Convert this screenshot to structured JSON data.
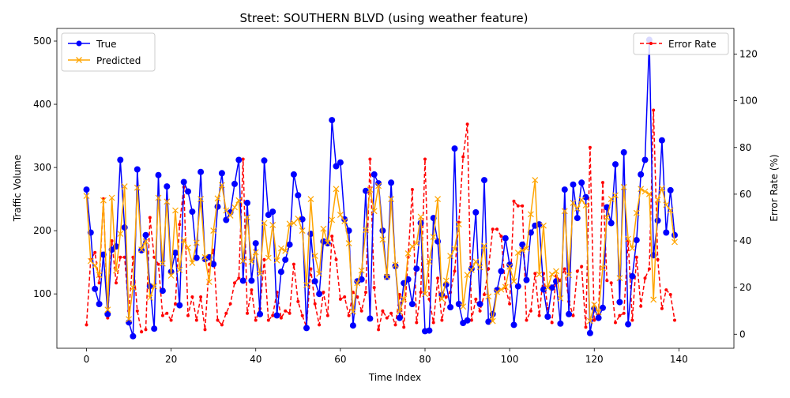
{
  "chart_data": {
    "type": "line",
    "title": "Street: SOUTHERN BLVD (using weather feature)",
    "xlabel": "Time Index",
    "ylabel": "Traffic Volume",
    "ylabel_right": "Error Rate (%)",
    "xlim": [
      -7,
      153
    ],
    "ylim": [
      14,
      520
    ],
    "ylim_right": [
      -6,
      131
    ],
    "x_ticks": [
      0,
      20,
      40,
      60,
      80,
      100,
      120,
      140
    ],
    "y_ticks": [
      100,
      200,
      300,
      400,
      500
    ],
    "y_right_ticks": [
      0,
      20,
      40,
      60,
      80,
      100,
      120
    ],
    "grid": false,
    "legend_left": [
      "True",
      "Predicted"
    ],
    "legend_right": [
      "Error Rate"
    ],
    "series": [
      {
        "name": "True",
        "axis": "left",
        "color": "#0000ff",
        "marker": "circle",
        "values": [
          265,
          197,
          108,
          84,
          162,
          68,
          170,
          175,
          312,
          205,
          55,
          33,
          297,
          169,
          193,
          112,
          45,
          288,
          105,
          270,
          135,
          165,
          82,
          277,
          262,
          230,
          157,
          293,
          155,
          158,
          147,
          238,
          291,
          217,
          229,
          274,
          312,
          121,
          244,
          121,
          180,
          68,
          311,
          225,
          230,
          66,
          135,
          154,
          178,
          289,
          256,
          218,
          46,
          195,
          120,
          100,
          183,
          180,
          375,
          302,
          308,
          218,
          200,
          50,
          120,
          123,
          263,
          61,
          289,
          275,
          200,
          127,
          276,
          144,
          62,
          117,
          123,
          84,
          140,
          212,
          41,
          42,
          220,
          183,
          98,
          115,
          79,
          330,
          84,
          54,
          58,
          140,
          229,
          84,
          280,
          56,
          68,
          106,
          136,
          188,
          146,
          51,
          112,
          178,
          122,
          197,
          208,
          210,
          107,
          64,
          110,
          120,
          53,
          265,
          68,
          273,
          220,
          276,
          253,
          38,
          77,
          62,
          78,
          237,
          212,
          305,
          87,
          324,
          52,
          128,
          185,
          289,
          312,
          502,
          161,
          216,
          343,
          197,
          264,
          193
        ]
      },
      {
        "name": "Predicted",
        "axis": "left",
        "color": "#ffa500",
        "marker": "x",
        "values": [
          255,
          152,
          145,
          130,
          248,
          75,
          252,
          137,
          195,
          270,
          60,
          110,
          268,
          170,
          183,
          94,
          112,
          252,
          148,
          246,
          129,
          232,
          138,
          185,
          173,
          149,
          181,
          250,
          158,
          119,
          200,
          251,
          272,
          232,
          224,
          237,
          248,
          152,
          221,
          151,
          166,
          132,
          212,
          157,
          209,
          153,
          172,
          168,
          211,
          212,
          219,
          200,
          114,
          250,
          160,
          132,
          203,
          181,
          217,
          266,
          225,
          215,
          180,
          72,
          117,
          137,
          201,
          265,
          231,
          271,
          186,
          127,
          250,
          146,
          72,
          92,
          164,
          175,
          180,
          222,
          100,
          151,
          190,
          250,
          92,
          121,
          160,
          171,
          210,
          80,
          130,
          138,
          151,
          142,
          176,
          96,
          57,
          103,
          107,
          111,
          143,
          120,
          165,
          169,
          172,
          226,
          280,
          131,
          208,
          110,
          131,
          136,
          93,
          231,
          130,
          244,
          235,
          249,
          240,
          57,
          83,
          71,
          141,
          221,
          250,
          256,
          125,
          269,
          187,
          172,
          228,
          266,
          262,
          258,
          91,
          249,
          267,
          241,
          232,
          182
        ]
      },
      {
        "name": "Error Rate",
        "axis": "right",
        "color": "#ff0000",
        "marker": "point",
        "values": [
          4,
          32,
          35,
          22,
          58,
          7,
          40,
          22,
          33,
          33,
          10,
          33,
          10,
          1,
          2,
          50,
          33,
          30,
          8,
          9,
          6,
          13,
          47,
          63,
          8,
          16,
          6,
          16,
          2,
          30,
          36,
          6,
          4,
          9,
          13,
          22,
          24,
          75,
          9,
          19,
          6,
          11,
          32,
          6,
          8,
          18,
          7,
          10,
          9,
          30,
          14,
          8,
          3,
          28,
          13,
          4,
          18,
          8,
          42,
          32,
          15,
          16,
          8,
          18,
          16,
          10,
          18,
          75,
          20,
          2,
          10,
          7,
          9,
          4,
          17,
          3,
          33,
          62,
          5,
          18,
          75,
          15,
          5,
          24,
          6,
          16,
          18,
          27,
          48,
          76,
          90,
          6,
          15,
          10,
          17,
          28,
          45,
          45,
          42,
          20,
          13,
          57,
          55,
          55,
          6,
          10,
          26,
          8,
          26,
          11,
          5,
          25,
          23,
          28,
          14,
          8,
          27,
          29,
          3,
          80,
          6,
          8,
          65,
          23,
          22,
          5,
          8,
          9,
          40,
          6,
          33,
          12,
          24,
          28,
          96,
          32,
          11,
          19,
          17,
          6
        ]
      }
    ]
  }
}
